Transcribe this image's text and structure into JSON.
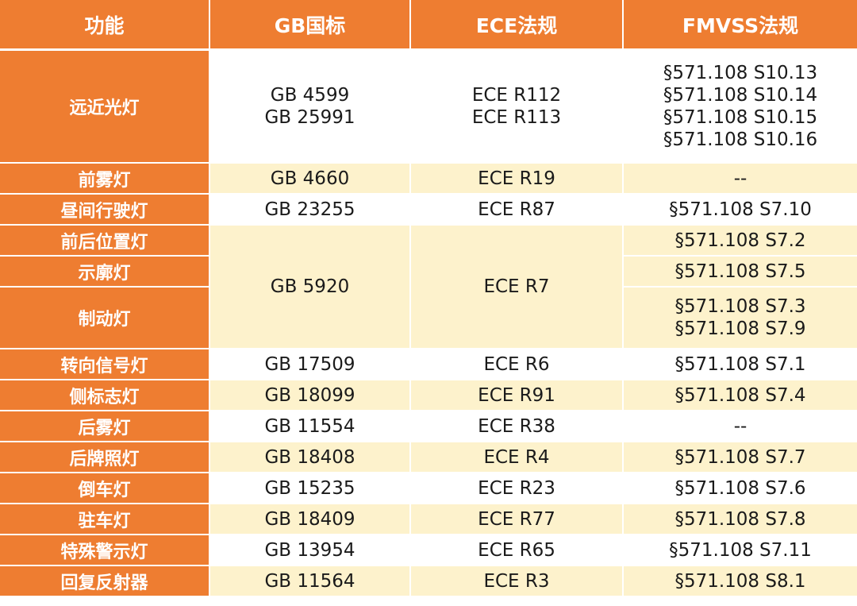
{
  "headers": [
    "功能",
    "GB国标",
    "ECE法规",
    "FMVSS法规"
  ],
  "rows": [
    {
      "func": "远近光灯",
      "gb": [
        "GB 4599",
        "GB 25991"
      ],
      "ece": [
        "ECE R112",
        "ECE R113"
      ],
      "fmvss": [
        "§571.108 S10.13",
        "§571.108 S10.14",
        "§571.108 S10.15",
        "§571.108 S10.16"
      ]
    },
    {
      "func": "前雾灯",
      "gb": [
        "GB 4660"
      ],
      "ece": [
        "ECE R19"
      ],
      "fmvss": [
        "--"
      ]
    },
    {
      "func": "昼间行驶灯",
      "gb": [
        "GB 23255"
      ],
      "ece": [
        "ECE R87"
      ],
      "fmvss": [
        "§571.108 S7.10"
      ]
    },
    {
      "func": "前后位置灯",
      "fmvss": [
        "§571.108 S7.2"
      ]
    },
    {
      "func": "示廓灯",
      "fmvss": [
        "§571.108 S7.5"
      ]
    },
    {
      "func": "制动灯",
      "fmvss": [
        "§571.108 S7.3",
        "§571.108 S7.9"
      ]
    },
    {
      "func": "转向信号灯",
      "gb": [
        "GB 17509"
      ],
      "ece": [
        "ECE R6"
      ],
      "fmvss": [
        "§571.108 S7.1"
      ]
    },
    {
      "func": "侧标志灯",
      "gb": [
        "GB 18099"
      ],
      "ece": [
        "ECE R91"
      ],
      "fmvss": [
        "§571.108 S7.4"
      ]
    },
    {
      "func": "后雾灯",
      "gb": [
        "GB 11554"
      ],
      "ece": [
        "ECE R38"
      ],
      "fmvss": [
        "--"
      ]
    },
    {
      "func": "后牌照灯",
      "gb": [
        "GB 18408"
      ],
      "ece": [
        "ECE R4"
      ],
      "fmvss": [
        "§571.108 S7.7"
      ]
    },
    {
      "func": "倒车灯",
      "gb": [
        "GB 15235"
      ],
      "ece": [
        "ECE R23"
      ],
      "fmvss": [
        "§571.108 S7.6"
      ]
    },
    {
      "func": "驻车灯",
      "gb": [
        "GB 18409"
      ],
      "ece": [
        "ECE R77"
      ],
      "fmvss": [
        "§571.108 S7.8"
      ]
    },
    {
      "func": "特殊警示灯",
      "gb": [
        "GB 13954"
      ],
      "ece": [
        "ECE R65"
      ],
      "fmvss": [
        "§571.108 S7.11"
      ]
    },
    {
      "func": "回复反射器",
      "gb": [
        "GB 11564"
      ],
      "ece": [
        "ECE R3"
      ],
      "fmvss": [
        "§571.108 S8.1"
      ]
    }
  ],
  "merged_group": {
    "gb": "GB 5920",
    "ece": "ECE R7"
  },
  "colors": {
    "header_bg": "#ee7d31",
    "stripe": "#fdf2cc",
    "text": "#1a1a1a",
    "header_text": "#ffffff"
  }
}
